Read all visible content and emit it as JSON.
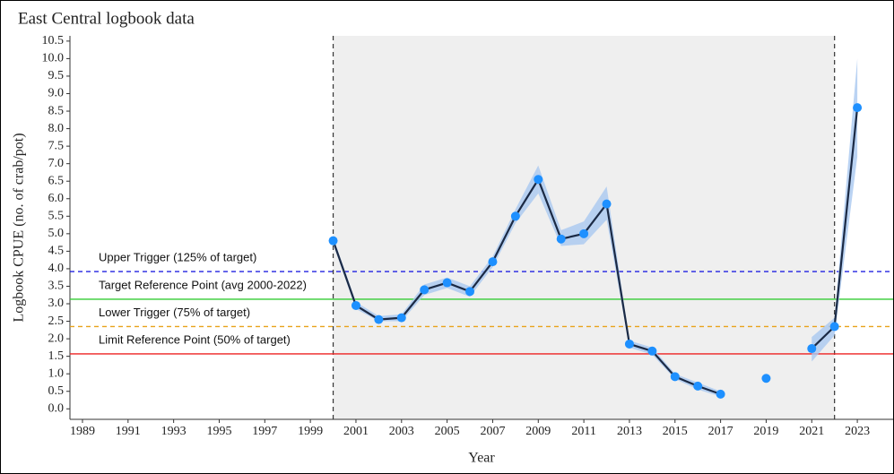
{
  "chart_data": {
    "type": "line",
    "title": "East Central logbook data",
    "x_label": "Year",
    "y_label": "Logbook CPUE (no. of crab/pot)",
    "x": [
      2000,
      2001,
      2002,
      2003,
      2004,
      2005,
      2006,
      2007,
      2008,
      2009,
      2010,
      2011,
      2012,
      2013,
      2014,
      2015,
      2016,
      2017,
      2018,
      2019,
      2020,
      2021,
      2022,
      2023
    ],
    "series": [
      {
        "color": "#1e90ff",
        "line_color": "#1b2a45",
        "ribbon_color": "#a9c8f0",
        "values": [
          4.8,
          2.95,
          2.55,
          2.6,
          3.4,
          3.6,
          3.35,
          4.2,
          5.5,
          6.55,
          4.85,
          5.0,
          5.85,
          1.85,
          1.65,
          0.92,
          0.65,
          0.42,
          null,
          0.87,
          null,
          1.72,
          2.35,
          8.6
        ],
        "ci_lower": [
          4.7,
          2.85,
          2.5,
          2.5,
          3.25,
          3.45,
          3.2,
          4.05,
          5.3,
          6.15,
          4.65,
          4.7,
          5.4,
          1.75,
          1.55,
          0.85,
          0.55,
          0.35,
          null,
          null,
          null,
          1.35,
          2.1,
          7.2
        ],
        "ci_upper": [
          4.9,
          3.05,
          2.65,
          2.7,
          3.55,
          3.75,
          3.5,
          4.35,
          5.7,
          6.95,
          5.1,
          5.35,
          6.35,
          1.95,
          1.75,
          1.0,
          0.75,
          0.5,
          null,
          null,
          null,
          2.05,
          2.6,
          10.0
        ]
      }
    ],
    "reference_lines": [
      {
        "label": "Upper Trigger (125% of target)",
        "value": 3.92,
        "color": "#2020e0",
        "dashed": true
      },
      {
        "label": "Target Reference Point (avg 2000-2022)",
        "value": 3.13,
        "color": "#33cc33",
        "dashed": false
      },
      {
        "label": "Lower Trigger (75% of target)",
        "value": 2.35,
        "color": "#e8a21a",
        "dashed": true
      },
      {
        "label": "Limit Reference Point (50% of target)",
        "value": 1.57,
        "color": "#ee2222",
        "dashed": false
      }
    ],
    "shaded_range": [
      2000,
      2022
    ],
    "xlim": [
      1988.45,
      2024.57
    ],
    "ylim": [
      -0.3,
      10.65
    ],
    "xticks": [
      1989,
      1991,
      1993,
      1995,
      1997,
      1999,
      2001,
      2003,
      2005,
      2007,
      2009,
      2011,
      2013,
      2015,
      2017,
      2019,
      2021,
      2023
    ],
    "yticks": [
      {
        "value": 0,
        "label": "0.0"
      },
      0.5,
      {
        "value": 1,
        "label": "1.0"
      },
      1.5,
      {
        "value": 2,
        "label": "2.0"
      },
      2.5,
      {
        "value": 3,
        "label": "3.0"
      },
      3.5,
      {
        "value": 4,
        "label": "4.0"
      },
      4.5,
      {
        "value": 5,
        "label": "5.0"
      },
      5.5,
      {
        "value": 6,
        "label": "6.0"
      },
      6.5,
      {
        "value": 7,
        "label": "7.0"
      },
      7.5,
      {
        "value": 8,
        "label": "8.0"
      },
      8.5,
      {
        "value": 9,
        "label": "9.0"
      },
      9.5,
      {
        "value": 10,
        "label": "10.0"
      },
      10.5
    ]
  }
}
